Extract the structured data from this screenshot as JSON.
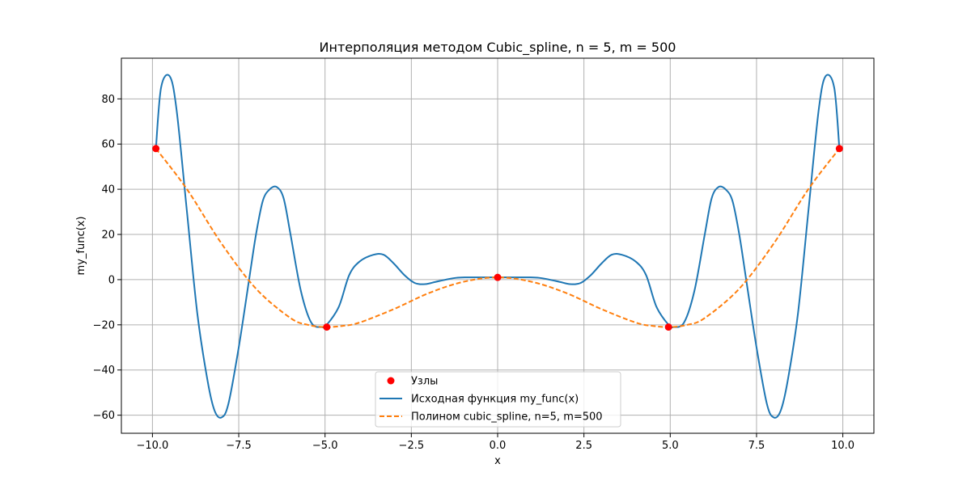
{
  "chart_data": {
    "type": "line",
    "title": "Интерполяция методом Cubic_spline, n = 5, m = 500",
    "xlabel": "x",
    "ylabel": "my_func(x)",
    "xlim": [
      -10.9,
      10.9
    ],
    "ylim": [
      -68,
      98
    ],
    "xticks": [
      -10.0,
      -7.5,
      -5.0,
      -2.5,
      0.0,
      2.5,
      5.0,
      7.5,
      10.0
    ],
    "xtick_labels": [
      "−10.0",
      "−7.5",
      "−5.0",
      "−2.5",
      "0.0",
      "2.5",
      "5.0",
      "7.5",
      "10.0"
    ],
    "yticks": [
      -60,
      -40,
      -20,
      0,
      20,
      40,
      60,
      80
    ],
    "ytick_labels": [
      "−60",
      "−40",
      "−20",
      "0",
      "20",
      "40",
      "60",
      "80"
    ],
    "grid": true,
    "legend_position": "lower-center",
    "series": [
      {
        "name": "Узлы",
        "kind": "scatter",
        "color": "#ff0000",
        "x": [
          -9.9,
          -4.95,
          0.0,
          4.95,
          9.9
        ],
        "y": [
          58,
          -21,
          1,
          -21,
          58
        ]
      },
      {
        "name": "Исходная функция my_func(x)",
        "kind": "line",
        "color": "#1f77b4",
        "x": [
          -9.9,
          -9.75,
          -9.5,
          -9.3,
          -9.0,
          -8.7,
          -8.4,
          -8.2,
          -8.0,
          -7.8,
          -7.5,
          -7.2,
          -7.0,
          -6.8,
          -6.6,
          -6.4,
          -6.2,
          -6.0,
          -5.7,
          -5.4,
          -5.1,
          -4.95,
          -4.6,
          -4.3,
          -4.0,
          -3.6,
          -3.3,
          -3.0,
          -2.7,
          -2.4,
          -2.1,
          -1.8,
          -1.5,
          -1.2,
          -0.9,
          -0.6,
          -0.3,
          0.0,
          0.3,
          0.6,
          0.9,
          1.2,
          1.5,
          1.8,
          2.1,
          2.4,
          2.7,
          3.0,
          3.3,
          3.6,
          4.0,
          4.3,
          4.6,
          4.95,
          5.1,
          5.4,
          5.7,
          6.0,
          6.2,
          6.4,
          6.6,
          6.8,
          7.0,
          7.2,
          7.5,
          7.8,
          8.0,
          8.2,
          8.4,
          8.7,
          9.0,
          9.3,
          9.5,
          9.75,
          9.9
        ],
        "y": [
          58,
          85,
          90,
          75,
          30,
          -15,
          -45,
          -58,
          -61,
          -55,
          -30,
          0,
          20,
          35,
          40,
          41,
          36,
          20,
          -5,
          -19,
          -21,
          -20,
          -12,
          2,
          8,
          11,
          11,
          7,
          2,
          -1.5,
          -2,
          -1,
          0,
          0.8,
          1,
          1,
          1,
          1,
          1,
          1,
          1,
          0.8,
          0,
          -1,
          -2,
          -1.5,
          2,
          7,
          11,
          11,
          8,
          2,
          -12,
          -20,
          -21,
          -19,
          -5,
          20,
          36,
          41,
          40,
          35,
          20,
          0,
          -30,
          -55,
          -61,
          -58,
          -45,
          -15,
          30,
          75,
          90,
          85,
          58
        ]
      },
      {
        "name": "Полином cubic_spline, n=5, m=500",
        "kind": "line",
        "style": "dashed",
        "color": "#ff7f0e",
        "x": [
          -9.9,
          -9.0,
          -8.0,
          -7.0,
          -6.0,
          -5.5,
          -5.0,
          -4.5,
          -4.0,
          -3.0,
          -2.0,
          -1.0,
          0.0,
          1.0,
          2.0,
          3.0,
          4.0,
          4.5,
          5.0,
          5.5,
          6.0,
          7.0,
          8.0,
          9.0,
          9.9
        ],
        "y": [
          58,
          40,
          16,
          -4,
          -17,
          -20,
          -21,
          -20.5,
          -19,
          -13,
          -6,
          -1,
          1,
          -1,
          -6,
          -13,
          -19,
          -20.5,
          -21,
          -20,
          -17,
          -4,
          16,
          40,
          58
        ]
      }
    ]
  }
}
